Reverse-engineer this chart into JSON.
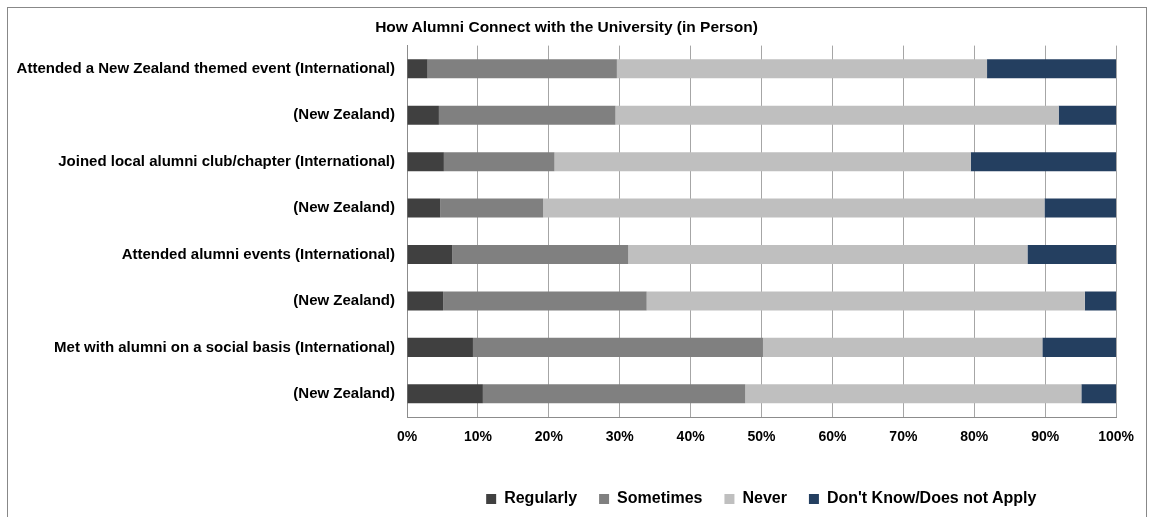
{
  "chart_data": {
    "type": "bar",
    "orientation": "horizontal",
    "stacked": true,
    "title": "How Alumni Connect with the University (in Person)",
    "categories": [
      "Attended a New Zealand themed event (International)",
      "(New Zealand)",
      "Joined local alumni club/chapter (International)",
      "(New Zealand)",
      "Attended alumni events (International)",
      "(New Zealand)",
      "Met with alumni on a social basis (International)",
      "(New Zealand)"
    ],
    "series": [
      {
        "name": "Regularly",
        "color": "#404040",
        "values": [
          2.9,
          4.5,
          5.2,
          4.7,
          6.4,
          5.1,
          9.3,
          10.7
        ]
      },
      {
        "name": "Sometimes",
        "color": "#808080",
        "values": [
          26.7,
          24.9,
          15.6,
          14.5,
          24.8,
          28.7,
          40.9,
          37.0
        ]
      },
      {
        "name": "Never",
        "color": "#bfbfbf",
        "values": [
          52.2,
          62.5,
          58.7,
          70.7,
          56.3,
          61.8,
          39.4,
          47.4
        ]
      },
      {
        "name": "Don't Know/Does not Apply",
        "color": "#243f60",
        "values": [
          18.2,
          8.1,
          20.5,
          10.1,
          12.5,
          4.4,
          10.4,
          4.9
        ]
      }
    ],
    "xlim": [
      0,
      100
    ],
    "xticks": [
      {
        "value": 0,
        "label": "0%"
      },
      {
        "value": 10,
        "label": "10%"
      },
      {
        "value": 20,
        "label": "20%"
      },
      {
        "value": 30,
        "label": "30%"
      },
      {
        "value": 40,
        "label": "40%"
      },
      {
        "value": 50,
        "label": "50%"
      },
      {
        "value": 60,
        "label": "60%"
      },
      {
        "value": 70,
        "label": "70%"
      },
      {
        "value": 80,
        "label": "80%"
      },
      {
        "value": 90,
        "label": "90%"
      },
      {
        "value": 100,
        "label": "100%"
      }
    ],
    "grid": "x",
    "legend": "bottom"
  }
}
